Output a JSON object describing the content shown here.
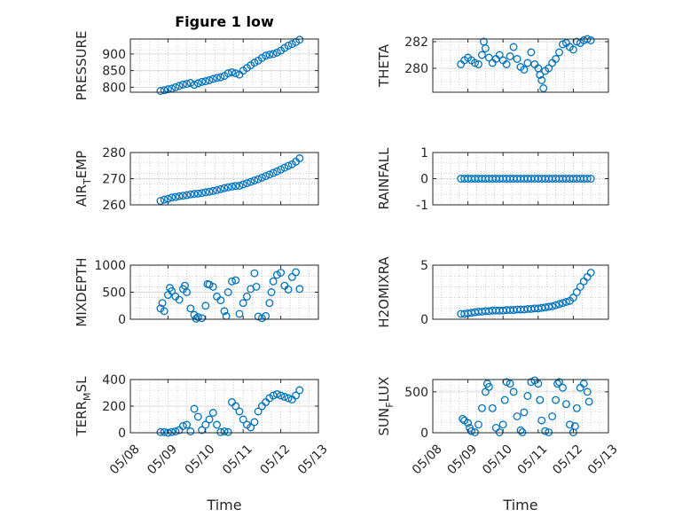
{
  "figure": {
    "title": "Figure 1 low",
    "xlabel": "Time"
  },
  "colors": {
    "marker": "#0072BD",
    "axis": "#262626",
    "grid": "#b0b0b0"
  },
  "chart_data": [
    {
      "type": "scatter",
      "ylabel": "PRESSURE",
      "ylim": [
        785,
        945
      ],
      "yticks": [
        800,
        850,
        900
      ],
      "ytick_labels": [
        "800",
        "850",
        "900"
      ],
      "xlim": [
        "05/08",
        "05/13"
      ],
      "xticks": [
        "05/08",
        "05/09",
        "05/10",
        "05/11",
        "05/12",
        "05/13"
      ],
      "grid": true,
      "series": [
        {
          "x": [
            8.8,
            8.9,
            9.0,
            9.1,
            9.2,
            9.3,
            9.4,
            9.5,
            9.6,
            9.7,
            9.8,
            9.9,
            10.0,
            10.1,
            10.2,
            10.3,
            10.4,
            10.5,
            10.6,
            10.7,
            10.8,
            10.9,
            11.0,
            11.1,
            11.2,
            11.3,
            11.4,
            11.5,
            11.6,
            11.7,
            11.8,
            11.9,
            12.0,
            12.1,
            12.2,
            12.3,
            12.4,
            12.5
          ],
          "y": [
            789,
            791,
            794,
            796,
            800,
            804,
            808,
            810,
            813,
            807,
            812,
            816,
            818,
            821,
            825,
            828,
            830,
            834,
            842,
            845,
            842,
            838,
            850,
            858,
            866,
            874,
            880,
            888,
            895,
            898,
            900,
            904,
            910,
            918,
            925,
            930,
            936,
            943
          ]
        }
      ]
    },
    {
      "type": "scatter",
      "ylabel": "THETA",
      "ylim": [
        278.2,
        282.2
      ],
      "yticks": [
        280,
        282
      ],
      "ytick_labels": [
        "280",
        "282"
      ],
      "xlim": [
        "05/08",
        "05/13"
      ],
      "xticks": [
        "05/08",
        "05/09",
        "05/10",
        "05/11",
        "05/12",
        "05/13"
      ],
      "grid": true,
      "series": [
        {
          "x": [
            8.8,
            8.9,
            9.0,
            9.1,
            9.2,
            9.3,
            9.4,
            9.45,
            9.5,
            9.6,
            9.7,
            9.8,
            9.9,
            10.0,
            10.1,
            10.2,
            10.3,
            10.4,
            10.5,
            10.6,
            10.7,
            10.8,
            10.9,
            11.0,
            11.05,
            11.1,
            11.15,
            11.2,
            11.3,
            11.4,
            11.5,
            11.6,
            11.7,
            11.8,
            11.9,
            12.0,
            12.1,
            12.2,
            12.3,
            12.4,
            12.5
          ],
          "y": [
            280.3,
            280.6,
            280.8,
            280.6,
            280.4,
            280.3,
            281.0,
            282.0,
            281.5,
            280.8,
            280.4,
            280.7,
            281.0,
            280.6,
            280.3,
            280.9,
            281.6,
            280.7,
            280.1,
            279.9,
            280.4,
            281.2,
            280.3,
            280.0,
            279.5,
            279.1,
            278.5,
            279.8,
            280.0,
            280.4,
            280.7,
            281.2,
            281.8,
            281.9,
            281.6,
            281.4,
            282.0,
            281.9,
            282.1,
            282.2,
            282.1
          ]
        }
      ]
    },
    {
      "type": "scatter",
      "ylabel": "AIR_TEMP",
      "ylim": [
        260,
        280
      ],
      "yticks": [
        260,
        270,
        280
      ],
      "ytick_labels": [
        "260",
        "270",
        "280"
      ],
      "xlim": [
        "05/08",
        "05/13"
      ],
      "xticks": [
        "05/08",
        "05/09",
        "05/10",
        "05/11",
        "05/12",
        "05/13"
      ],
      "grid": true,
      "series": [
        {
          "x": [
            8.8,
            8.9,
            9.0,
            9.1,
            9.2,
            9.3,
            9.4,
            9.5,
            9.6,
            9.7,
            9.8,
            9.9,
            10.0,
            10.1,
            10.2,
            10.3,
            10.4,
            10.5,
            10.6,
            10.7,
            10.8,
            10.9,
            11.0,
            11.1,
            11.2,
            11.3,
            11.4,
            11.5,
            11.6,
            11.7,
            11.8,
            11.9,
            12.0,
            12.1,
            12.2,
            12.3,
            12.4,
            12.5
          ],
          "y": [
            261.5,
            262.0,
            262.3,
            262.8,
            263.0,
            263.3,
            263.5,
            263.7,
            264.0,
            264.2,
            264.3,
            264.5,
            264.8,
            265.0,
            265.3,
            265.6,
            266.0,
            266.4,
            266.7,
            267.0,
            267.2,
            267.3,
            267.8,
            268.3,
            268.8,
            269.3,
            269.8,
            270.4,
            271.0,
            271.6,
            272.2,
            272.8,
            273.5,
            274.2,
            274.9,
            275.5,
            276.5,
            277.8
          ]
        }
      ]
    },
    {
      "type": "scatter",
      "ylabel": "RAINFALL",
      "ylim": [
        -1,
        1
      ],
      "yticks": [
        -1,
        0,
        1
      ],
      "ytick_labels": [
        "-1",
        "0",
        "1"
      ],
      "xlim": [
        "05/08",
        "05/13"
      ],
      "xticks": [
        "05/08",
        "05/09",
        "05/10",
        "05/11",
        "05/12",
        "05/13"
      ],
      "grid": true,
      "series": [
        {
          "x": [
            8.8,
            8.9,
            9.0,
            9.1,
            9.2,
            9.3,
            9.4,
            9.5,
            9.6,
            9.7,
            9.8,
            9.9,
            10.0,
            10.1,
            10.2,
            10.3,
            10.4,
            10.5,
            10.6,
            10.7,
            10.8,
            10.9,
            11.0,
            11.1,
            11.2,
            11.3,
            11.4,
            11.5,
            11.6,
            11.7,
            11.8,
            11.9,
            12.0,
            12.1,
            12.2,
            12.3,
            12.4,
            12.5
          ],
          "y": [
            0,
            0,
            0,
            0,
            0,
            0,
            0,
            0,
            0,
            0,
            0,
            0,
            0,
            0,
            0,
            0,
            0,
            0,
            0,
            0,
            0,
            0,
            0,
            0,
            0,
            0,
            0,
            0,
            0,
            0,
            0,
            0,
            0,
            0,
            0,
            0,
            0,
            0
          ]
        }
      ]
    },
    {
      "type": "scatter",
      "ylabel": "MIXDEPTH",
      "ylim": [
        0,
        1000
      ],
      "yticks": [
        0,
        500,
        1000
      ],
      "ytick_labels": [
        "0",
        "500",
        "1000"
      ],
      "xlim": [
        "05/08",
        "05/13"
      ],
      "xticks": [
        "05/08",
        "05/09",
        "05/10",
        "05/11",
        "05/12",
        "05/13"
      ],
      "grid": true,
      "series": [
        {
          "x": [
            8.8,
            8.85,
            8.9,
            9.0,
            9.05,
            9.1,
            9.2,
            9.3,
            9.4,
            9.45,
            9.5,
            9.6,
            9.7,
            9.75,
            9.8,
            9.9,
            10.0,
            10.05,
            10.1,
            10.2,
            10.3,
            10.4,
            10.5,
            10.55,
            10.6,
            10.7,
            10.8,
            10.9,
            11.0,
            11.1,
            11.2,
            11.3,
            11.35,
            11.4,
            11.5,
            11.6,
            11.7,
            11.75,
            11.8,
            11.9,
            12.0,
            12.1,
            12.2,
            12.3,
            12.4,
            12.5
          ],
          "y": [
            200,
            300,
            150,
            450,
            580,
            520,
            420,
            360,
            560,
            620,
            500,
            200,
            80,
            10,
            40,
            20,
            250,
            650,
            640,
            600,
            420,
            350,
            150,
            60,
            500,
            700,
            720,
            100,
            300,
            420,
            560,
            850,
            600,
            50,
            20,
            60,
            300,
            500,
            700,
            820,
            860,
            620,
            550,
            780,
            870,
            560
          ]
        }
      ]
    },
    {
      "type": "scatter",
      "ylabel": "H2OMIXRA",
      "ylim": [
        0,
        5
      ],
      "yticks": [
        0,
        5
      ],
      "ytick_labels": [
        "0",
        "5"
      ],
      "xlim": [
        "05/08",
        "05/13"
      ],
      "xticks": [
        "05/08",
        "05/09",
        "05/10",
        "05/11",
        "05/12",
        "05/13"
      ],
      "grid": true,
      "series": [
        {
          "x": [
            8.8,
            8.9,
            9.0,
            9.1,
            9.2,
            9.3,
            9.4,
            9.5,
            9.6,
            9.7,
            9.8,
            9.9,
            10.0,
            10.1,
            10.2,
            10.3,
            10.4,
            10.5,
            10.6,
            10.7,
            10.8,
            10.9,
            11.0,
            11.1,
            11.2,
            11.3,
            11.4,
            11.5,
            11.6,
            11.7,
            11.8,
            11.9,
            12.0,
            12.1,
            12.2,
            12.3,
            12.4,
            12.5
          ],
          "y": [
            0.5,
            0.5,
            0.55,
            0.6,
            0.65,
            0.7,
            0.7,
            0.75,
            0.75,
            0.8,
            0.8,
            0.8,
            0.8,
            0.85,
            0.85,
            0.85,
            0.9,
            0.9,
            0.9,
            0.95,
            0.95,
            1.0,
            1.0,
            1.05,
            1.1,
            1.15,
            1.2,
            1.3,
            1.4,
            1.5,
            1.6,
            1.7,
            2.0,
            2.5,
            3.0,
            3.5,
            3.9,
            4.3
          ]
        }
      ]
    },
    {
      "type": "scatter",
      "ylabel": "TERR_MSL",
      "ylim": [
        0,
        400
      ],
      "yticks": [
        0,
        200,
        400
      ],
      "ytick_labels": [
        "0",
        "200",
        "400"
      ],
      "xlim": [
        "05/08",
        "05/13"
      ],
      "xticks": [
        "05/08",
        "05/09",
        "05/10",
        "05/11",
        "05/12",
        "05/13"
      ],
      "grid": true,
      "series": [
        {
          "x": [
            8.8,
            8.9,
            9.0,
            9.1,
            9.2,
            9.3,
            9.4,
            9.5,
            9.6,
            9.7,
            9.8,
            9.9,
            10.0,
            10.1,
            10.2,
            10.3,
            10.4,
            10.5,
            10.6,
            10.7,
            10.8,
            10.9,
            11.0,
            11.1,
            11.2,
            11.3,
            11.4,
            11.5,
            11.6,
            11.7,
            11.8,
            11.9,
            12.0,
            12.1,
            12.2,
            12.3,
            12.4,
            12.5
          ],
          "y": [
            5,
            5,
            0,
            5,
            10,
            20,
            50,
            60,
            10,
            180,
            120,
            20,
            60,
            100,
            150,
            60,
            5,
            10,
            5,
            230,
            200,
            160,
            100,
            60,
            40,
            80,
            160,
            200,
            230,
            260,
            280,
            290,
            280,
            270,
            260,
            250,
            280,
            320
          ]
        }
      ]
    },
    {
      "type": "scatter",
      "ylabel": "SUN_FLUX",
      "ylim": [
        0,
        650
      ],
      "yticks": [
        0,
        500
      ],
      "ytick_labels": [
        "0",
        "500"
      ],
      "xlim": [
        "05/08",
        "05/13"
      ],
      "xticks": [
        "05/08",
        "05/09",
        "05/10",
        "05/11",
        "05/12",
        "05/13"
      ],
      "grid": true,
      "series": [
        {
          "x": [
            8.85,
            8.9,
            9.0,
            9.05,
            9.1,
            9.2,
            9.3,
            9.4,
            9.5,
            9.55,
            9.6,
            9.7,
            9.8,
            9.9,
            10.0,
            10.05,
            10.1,
            10.2,
            10.3,
            10.4,
            10.5,
            10.55,
            10.6,
            10.7,
            10.8,
            10.9,
            11.0,
            11.05,
            11.1,
            11.2,
            11.3,
            11.4,
            11.5,
            11.55,
            11.6,
            11.7,
            11.8,
            11.9,
            12.0,
            12.05,
            12.1,
            12.2,
            12.3,
            12.4,
            12.45
          ],
          "y": [
            170,
            150,
            120,
            60,
            20,
            5,
            100,
            300,
            500,
            600,
            560,
            300,
            60,
            5,
            100,
            400,
            620,
            600,
            500,
            200,
            30,
            5,
            250,
            450,
            620,
            640,
            600,
            400,
            150,
            20,
            5,
            200,
            400,
            600,
            620,
            550,
            350,
            100,
            5,
            80,
            300,
            550,
            600,
            500,
            380
          ]
        }
      ]
    }
  ]
}
